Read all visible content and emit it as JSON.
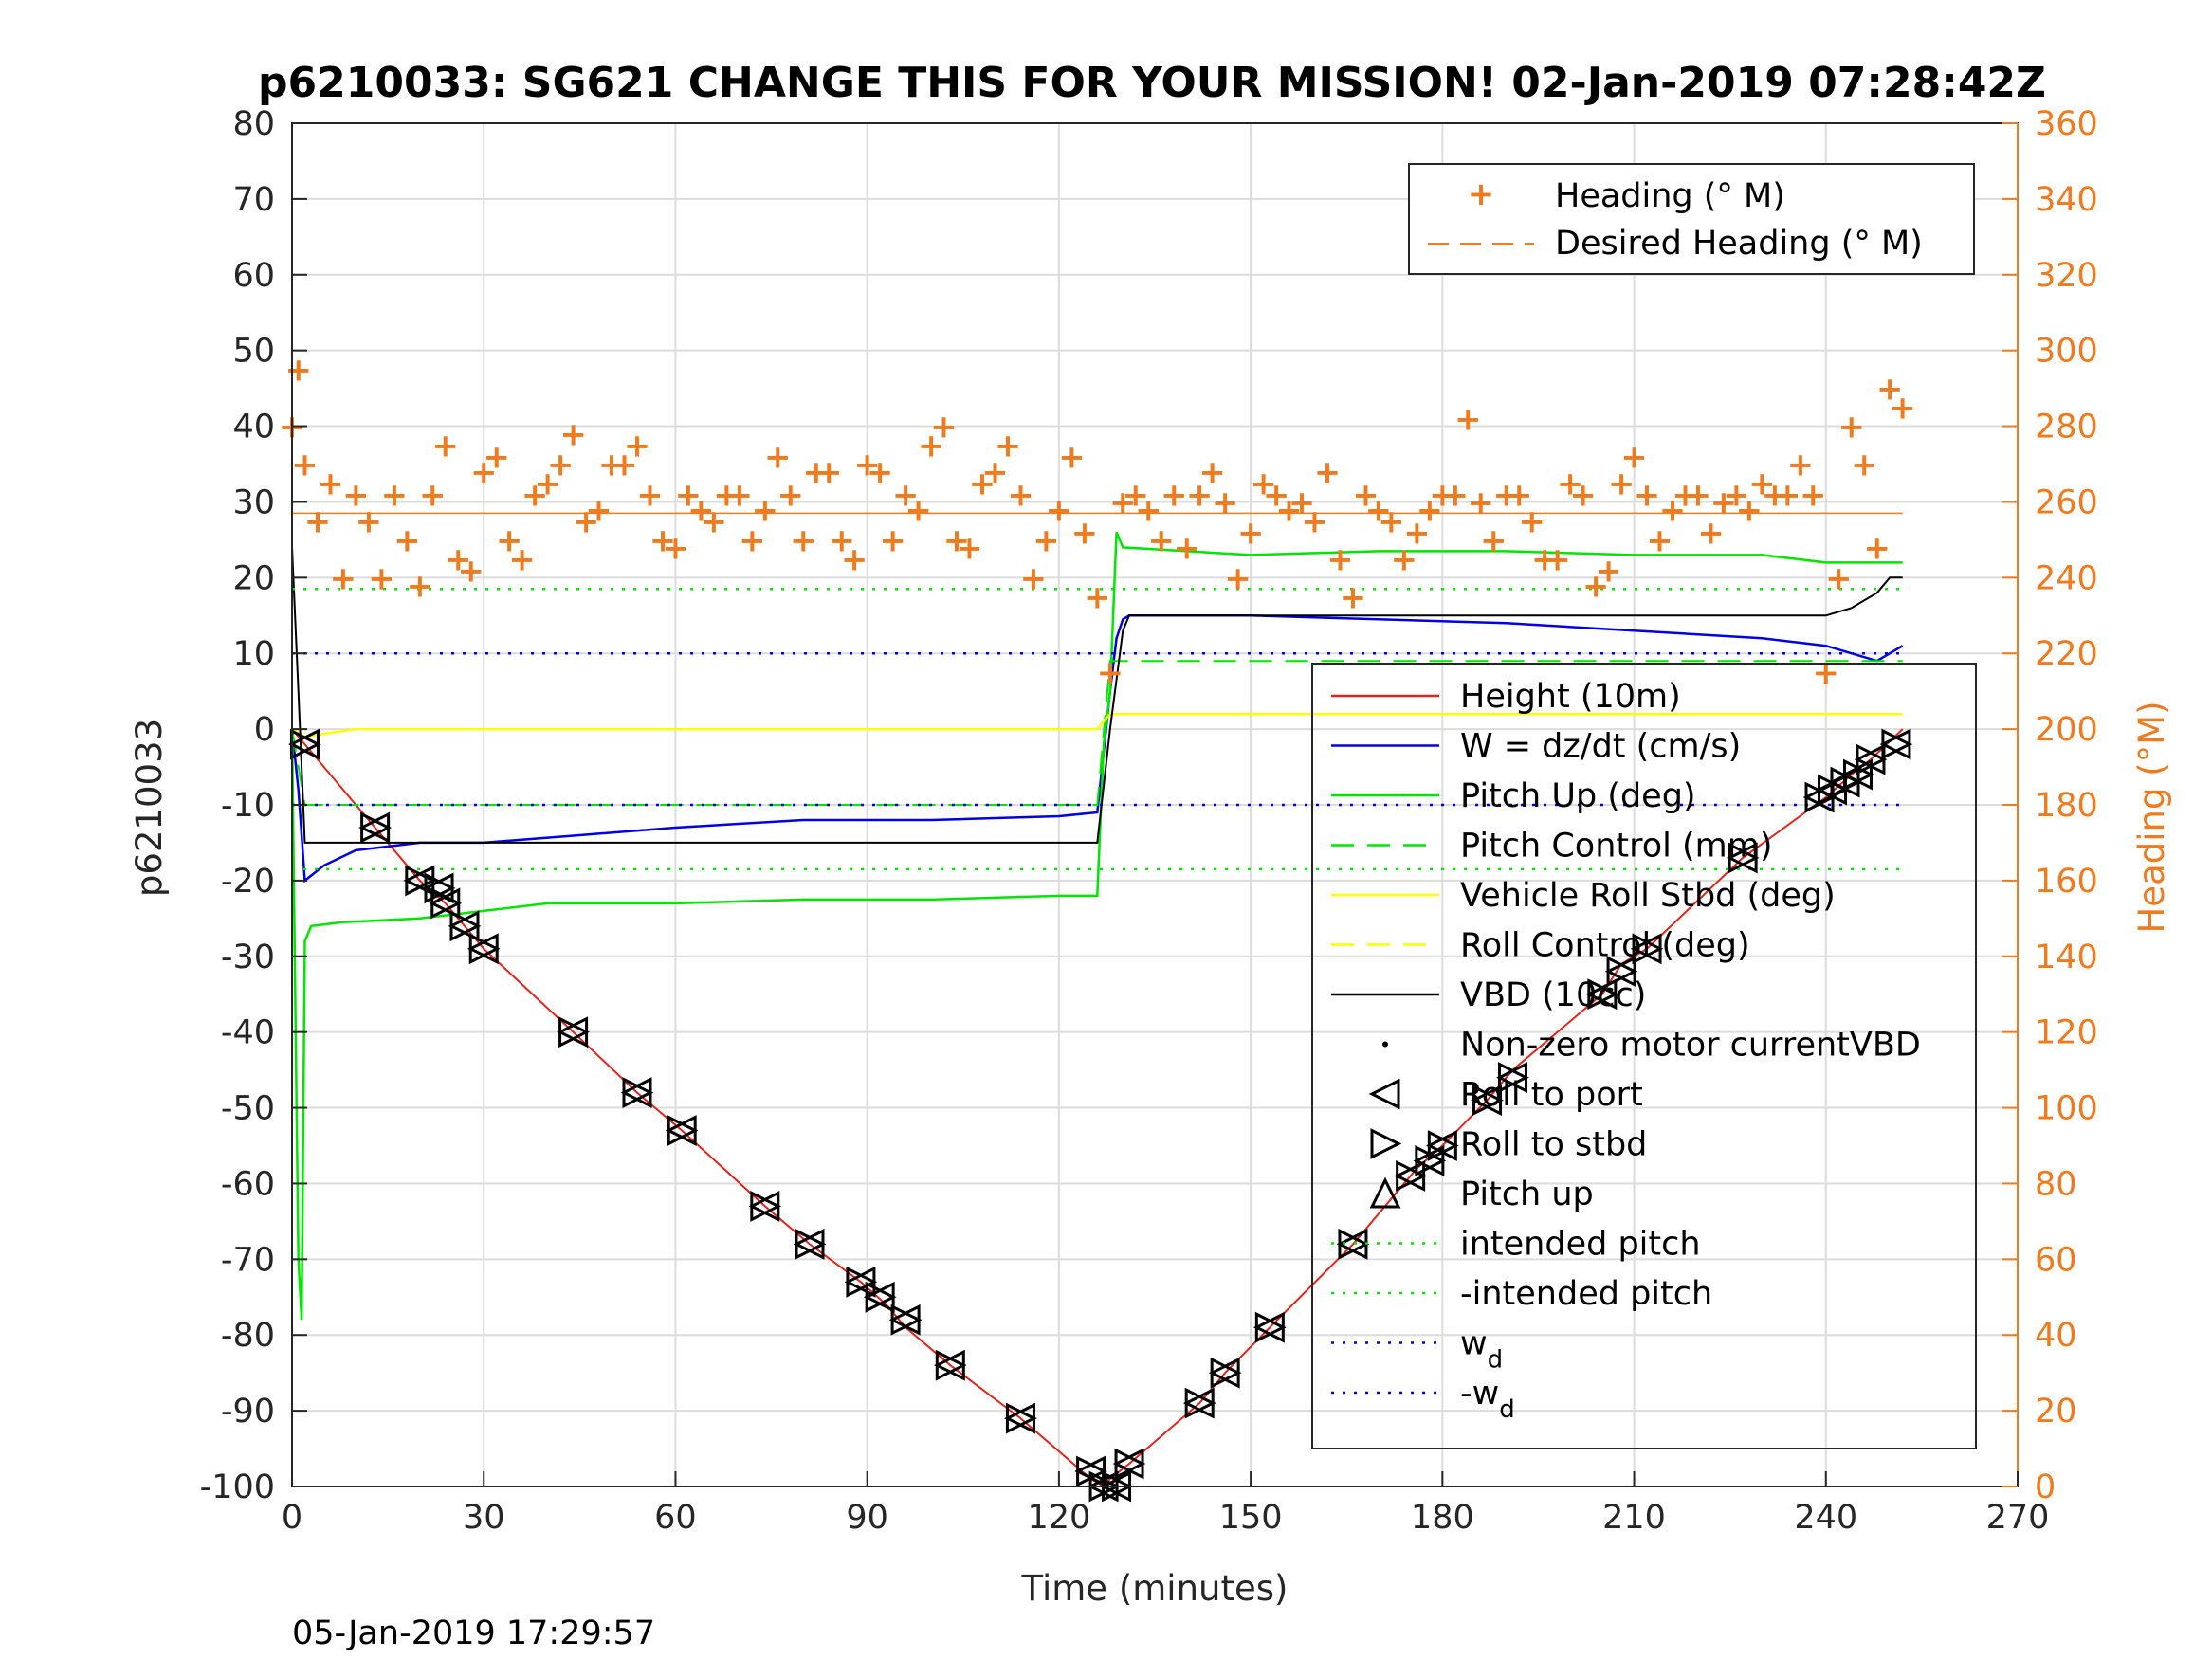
{
  "chart_data": {
    "type": "line",
    "title": "p6210033: SG621 CHANGE THIS FOR YOUR MISSION! 02-Jan-2019 07:28:42Z",
    "xlabel": "Time (minutes)",
    "ylabel": "p6210033",
    "y2label": "Heading (°M)",
    "xlim": [
      0,
      270
    ],
    "ylim": [
      -100,
      80
    ],
    "y2lim": [
      0,
      360
    ],
    "xticks": [
      "0",
      "30",
      "60",
      "90",
      "120",
      "150",
      "180",
      "210",
      "240",
      "270"
    ],
    "yticks": [
      "80",
      "70",
      "60",
      "50",
      "40",
      "30",
      "20",
      "10",
      "0",
      "-10",
      "-20",
      "-30",
      "-40",
      "-50",
      "-60",
      "-70",
      "-80",
      "-90",
      "-100"
    ],
    "y2ticks": [
      "360",
      "340",
      "320",
      "300",
      "280",
      "260",
      "240",
      "220",
      "200",
      "180",
      "160",
      "140",
      "120",
      "100",
      "80",
      "60",
      "40",
      "20",
      "0"
    ],
    "grid": true,
    "timestamp": "05-Jan-2019 17:29:57",
    "legend_right_axis": {
      "placement": "top-right",
      "entries": [
        "Heading (° M)",
        "Desired Heading (° M)"
      ]
    },
    "legend_left_axis": {
      "placement": "middle-right",
      "entries": [
        {
          "text": "Height (10m)",
          "color": "#e2231a",
          "style": "solid"
        },
        {
          "text": "W = dz/dt (cm/s)",
          "color": "#0000e6",
          "style": "solid"
        },
        {
          "text": "Pitch Up (deg)",
          "color": "#00e600",
          "style": "solid"
        },
        {
          "text": "Pitch Control (mm)",
          "color": "#00e600",
          "style": "dashed"
        },
        {
          "text": "Vehicle Roll Stbd (deg)",
          "color": "#ffff00",
          "style": "solid"
        },
        {
          "text": "Roll Control (deg)",
          "color": "#ffff00",
          "style": "dashed"
        },
        {
          "text": "VBD (10cc)",
          "color": "#000000",
          "style": "solid"
        },
        {
          "text": "Non-zero motor currentVBD",
          "color": "#000000",
          "style": "dot"
        },
        {
          "text": "Roll to port",
          "color": "#000000",
          "style": "tri-left"
        },
        {
          "text": "Roll to stbd",
          "color": "#000000",
          "style": "tri-right"
        },
        {
          "text": "Pitch up",
          "color": "#000000",
          "style": "tri-up"
        },
        {
          "text": "intended pitch",
          "color": "#00e600",
          "style": "dotted"
        },
        {
          "text": "-intended pitch",
          "color": "#00e600",
          "style": "dotted"
        },
        {
          "text": "w",
          "sub": "d",
          "color": "#0000e6",
          "style": "dotted"
        },
        {
          "text": "-w",
          "sub": "d",
          "color": "#0000e6",
          "style": "dotted"
        }
      ]
    },
    "colors": {
      "heading": "#f07a1e",
      "height": "#e2231a",
      "w": "#0000e6",
      "pitch": "#00e600",
      "roll": "#ffff00",
      "vbd": "#000000"
    },
    "series": [
      {
        "name": "Height (10m)",
        "axis": "left",
        "x": [
          0,
          2,
          13,
          20,
          24,
          27,
          30,
          44,
          54,
          61,
          74,
          81,
          89,
          93,
          96,
          103,
          114,
          125,
          127,
          128,
          131,
          142,
          146,
          153,
          166,
          176,
          180,
          187,
          191,
          205,
          208,
          212,
          227,
          240,
          244,
          247,
          252
        ],
        "y": [
          0,
          -2,
          -13,
          -20,
          -23,
          -26,
          -29,
          -40,
          -48,
          -53,
          -63,
          -68,
          -73,
          -76,
          -79,
          -84,
          -91,
          -99,
          -100,
          -99,
          -97,
          -89,
          -85,
          -79,
          -68,
          -58,
          -55,
          -49,
          -45,
          -35,
          -31,
          -29,
          -17,
          -9,
          -6,
          -4,
          0
        ]
      },
      {
        "name": "W = dz/dt (cm/s)",
        "axis": "left",
        "x": [
          0,
          1,
          2,
          5,
          10,
          20,
          30,
          45,
          60,
          80,
          100,
          120,
          126,
          128,
          129,
          130,
          131,
          150,
          170,
          190,
          210,
          230,
          240,
          248,
          252
        ],
        "y": [
          0,
          -8,
          -20,
          -18,
          -16,
          -15,
          -15,
          -14,
          -13,
          -12,
          -12,
          -11.5,
          -11,
          5,
          12,
          14.5,
          15,
          15,
          14.5,
          14,
          13,
          12,
          11,
          9,
          11
        ]
      },
      {
        "name": "Pitch Up (deg)",
        "axis": "left",
        "x": [
          0,
          1,
          1.5,
          2,
          3,
          8,
          20,
          40,
          60,
          80,
          100,
          120,
          126,
          127,
          128,
          129,
          130,
          150,
          170,
          190,
          210,
          230,
          240,
          248,
          252
        ],
        "y": [
          0,
          -70,
          -78,
          -28,
          -26,
          -25.5,
          -25,
          -23,
          -23,
          -22.5,
          -22.5,
          -22,
          -22,
          -2,
          5,
          26,
          24,
          23,
          23.5,
          23.5,
          23,
          23,
          22,
          22,
          22
        ]
      },
      {
        "name": "Pitch Control (mm)",
        "axis": "left",
        "x": [
          0,
          2,
          126,
          128,
          252
        ],
        "y": [
          0,
          -10,
          -10,
          9,
          9
        ]
      },
      {
        "name": "Vehicle Roll Stbd (deg)",
        "axis": "left",
        "x": [
          0,
          2,
          10,
          20,
          40,
          60,
          80,
          100,
          120,
          126,
          128,
          140,
          160,
          180,
          200,
          220,
          240,
          252
        ],
        "y": [
          0,
          -1,
          0,
          0,
          0,
          0,
          0,
          0,
          0,
          0,
          2,
          2,
          2,
          2,
          2,
          2,
          2,
          2
        ]
      },
      {
        "name": "VBD (10cc)",
        "axis": "left",
        "x": [
          0,
          1,
          2,
          126,
          128,
          130,
          131,
          240,
          244,
          248,
          250,
          252
        ],
        "y": [
          24,
          5,
          -15,
          -15,
          0,
          13,
          15,
          15,
          16,
          18,
          20,
          20
        ]
      },
      {
        "name": "intended pitch",
        "axis": "left",
        "x": [
          0,
          252
        ],
        "y": [
          18.5,
          18.5
        ]
      },
      {
        "name": "-intended pitch",
        "axis": "left",
        "x": [
          0,
          252
        ],
        "y": [
          -18.5,
          -18.5
        ]
      },
      {
        "name": "w_d",
        "axis": "left",
        "x": [
          0,
          252
        ],
        "y": [
          10,
          10
        ]
      },
      {
        "name": "-w_d",
        "axis": "left",
        "x": [
          0,
          252
        ],
        "y": [
          -10,
          -10
        ]
      },
      {
        "name": "Heading (° M)",
        "axis": "right",
        "x": [
          0,
          1,
          2,
          4,
          6,
          8,
          10,
          12,
          14,
          16,
          18,
          20,
          22,
          24,
          26,
          28,
          30,
          32,
          34,
          36,
          38,
          40,
          42,
          44,
          46,
          48,
          50,
          52,
          54,
          56,
          58,
          60,
          62,
          64,
          66,
          68,
          70,
          72,
          74,
          76,
          78,
          80,
          82,
          84,
          86,
          88,
          90,
          92,
          94,
          96,
          98,
          100,
          102,
          104,
          106,
          108,
          110,
          112,
          114,
          116,
          118,
          120,
          122,
          124,
          126,
          128,
          130,
          132,
          134,
          136,
          138,
          140,
          142,
          144,
          146,
          148,
          150,
          152,
          154,
          156,
          158,
          160,
          162,
          164,
          166,
          168,
          170,
          172,
          174,
          176,
          178,
          180,
          182,
          184,
          186,
          188,
          190,
          192,
          194,
          196,
          198,
          200,
          202,
          204,
          206,
          208,
          210,
          212,
          214,
          216,
          218,
          220,
          222,
          224,
          226,
          228,
          230,
          232,
          234,
          236,
          238,
          240,
          242,
          244,
          246,
          248,
          250,
          252
        ],
        "y": [
          280,
          295,
          270,
          255,
          265,
          240,
          262,
          255,
          240,
          262,
          250,
          238,
          262,
          275,
          245,
          242,
          268,
          272,
          250,
          245,
          262,
          265,
          270,
          278,
          255,
          258,
          270,
          270,
          275,
          262,
          250,
          248,
          262,
          258,
          255,
          262,
          262,
          250,
          258,
          272,
          262,
          250,
          268,
          268,
          250,
          245,
          270,
          268,
          250,
          262,
          258,
          275,
          280,
          250,
          248,
          265,
          268,
          275,
          262,
          240,
          250,
          258,
          272,
          252,
          235,
          215,
          260,
          262,
          258,
          250,
          262,
          248,
          262,
          268,
          260,
          240,
          252,
          265,
          262,
          258,
          260,
          255,
          268,
          245,
          235,
          262,
          258,
          255,
          245,
          252,
          258,
          262,
          262,
          282,
          260,
          250,
          262,
          262,
          255,
          245,
          245,
          265,
          262,
          238,
          242,
          265,
          272,
          262,
          250,
          258,
          262,
          262,
          252,
          260,
          262,
          258,
          265,
          262,
          262,
          270,
          262,
          215,
          240,
          280,
          270,
          248,
          290,
          285
        ]
      },
      {
        "name": "Desired Heading (° M)",
        "axis": "right",
        "x": [
          0,
          252
        ],
        "y": [
          257,
          257
        ]
      }
    ],
    "markers_tri_left": {
      "x": [
        2,
        13,
        20,
        23,
        24,
        27,
        30,
        44,
        54,
        61,
        74,
        81,
        89,
        92,
        96,
        103,
        114,
        125,
        127,
        129,
        131,
        142,
        146,
        153,
        166,
        175,
        178,
        180,
        187,
        191,
        205,
        208,
        212,
        227,
        239,
        241,
        243,
        245,
        247,
        251
      ],
      "y": [
        -2,
        -13,
        -20,
        -21,
        -23,
        -26,
        -29,
        -40,
        -48,
        -53,
        -63,
        -68,
        -73,
        -75,
        -78,
        -84,
        -91,
        -98,
        -100,
        -100,
        -97,
        -89,
        -85,
        -79,
        -68,
        -59,
        -57,
        -55,
        -49,
        -46,
        -35,
        -32,
        -29,
        -17,
        -9,
        -8,
        -7,
        -6,
        -4,
        -2
      ]
    }
  }
}
